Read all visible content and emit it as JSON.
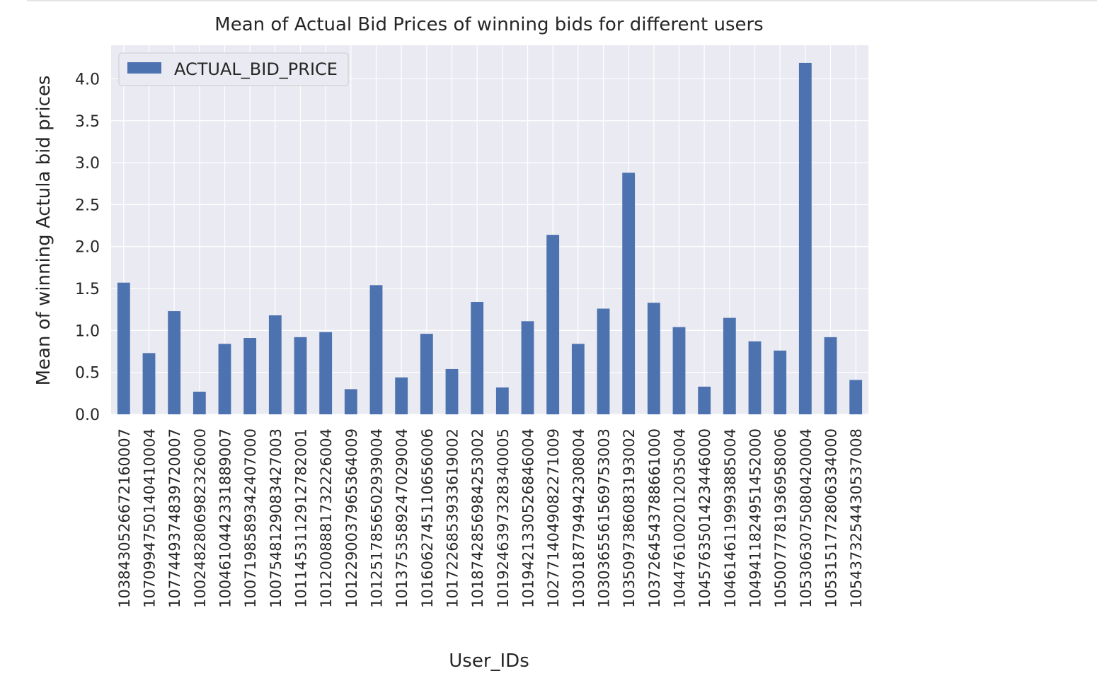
{
  "colors": {
    "bar": "#4c72b0",
    "plot_background": "#eaeaf2",
    "grid": "#ffffff",
    "text": "#262626"
  },
  "chart_data": {
    "type": "bar",
    "title": "Mean of Actual Bid Prices of winning bids for different users",
    "xlabel": "User_IDs",
    "ylabel": "Mean of winning Actula bid prices",
    "ylim": [
      0,
      4.4
    ],
    "yticks": [
      "0.0",
      "0.5",
      "1.0",
      "1.5",
      "2.0",
      "2.5",
      "3.0",
      "3.5",
      "4.0"
    ],
    "grid": true,
    "legend_position": "top-left",
    "categories": [
      "1038430526672160007",
      "1070994750140410004",
      "1077449374839720007",
      "1002482806982326000",
      "1004610442331889007",
      "1007198589342407000",
      "1007548129083427003",
      "1011453112912782001",
      "1012008881732226004",
      "1012290037965364009",
      "1012517856502939004",
      "1013753589247029004",
      "1016062745110656006",
      "1017226853933619002",
      "1018742856984253002",
      "1019246397328340005",
      "1019421330526846004",
      "1027714049082271009",
      "1030187794942308004",
      "1030365561569753003",
      "1035097386083193002",
      "1037264543788661000",
      "1044761002012035004",
      "1045763501423446000",
      "1046146119993885004",
      "1049411824951452000",
      "1050077781936958006",
      "1053063075080420004",
      "1053151772806334000",
      "1054373254430537008"
    ],
    "series": [
      {
        "name": "ACTUAL_BID_PRICE",
        "values": [
          1.57,
          0.73,
          1.23,
          0.27,
          0.84,
          0.91,
          1.18,
          0.92,
          0.98,
          0.3,
          1.54,
          0.44,
          0.96,
          0.54,
          1.34,
          0.32,
          1.11,
          2.14,
          0.84,
          1.26,
          2.88,
          1.33,
          1.04,
          0.33,
          1.15,
          0.87,
          0.76,
          4.19,
          0.92,
          0.41
        ]
      }
    ]
  }
}
